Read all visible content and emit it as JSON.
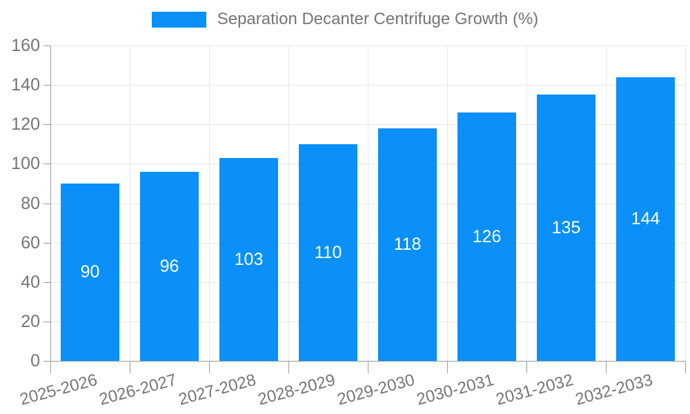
{
  "chart_data": {
    "type": "bar",
    "title": "Separation Decanter Centrifuge Growth (%)",
    "legend": [
      "Separation Decanter Centrifuge Growth (%)"
    ],
    "legend_position": "top-center",
    "categories": [
      "2025-2026",
      "2026-2027",
      "2027-2028",
      "2028-2029",
      "2029-2030",
      "2030-2031",
      "2031-2032",
      "2032-2033"
    ],
    "values": [
      90,
      96,
      103,
      110,
      118,
      126,
      135,
      144
    ],
    "bar_value_labels": [
      "90",
      "96",
      "103",
      "110",
      "118",
      "126",
      "135",
      "144"
    ],
    "xlabel": "",
    "ylabel": "",
    "ylim": [
      0,
      160
    ],
    "yticks": [
      0,
      20,
      40,
      60,
      80,
      100,
      120,
      140,
      160
    ],
    "grid": true,
    "x_label_rotation_deg": -15
  },
  "colors": {
    "bar": "#0A90F8",
    "axis_line": "#999999",
    "gridline": "#e6e6e6",
    "text": "#757575",
    "bar_label": "#ffffff",
    "background": "#ffffff"
  }
}
